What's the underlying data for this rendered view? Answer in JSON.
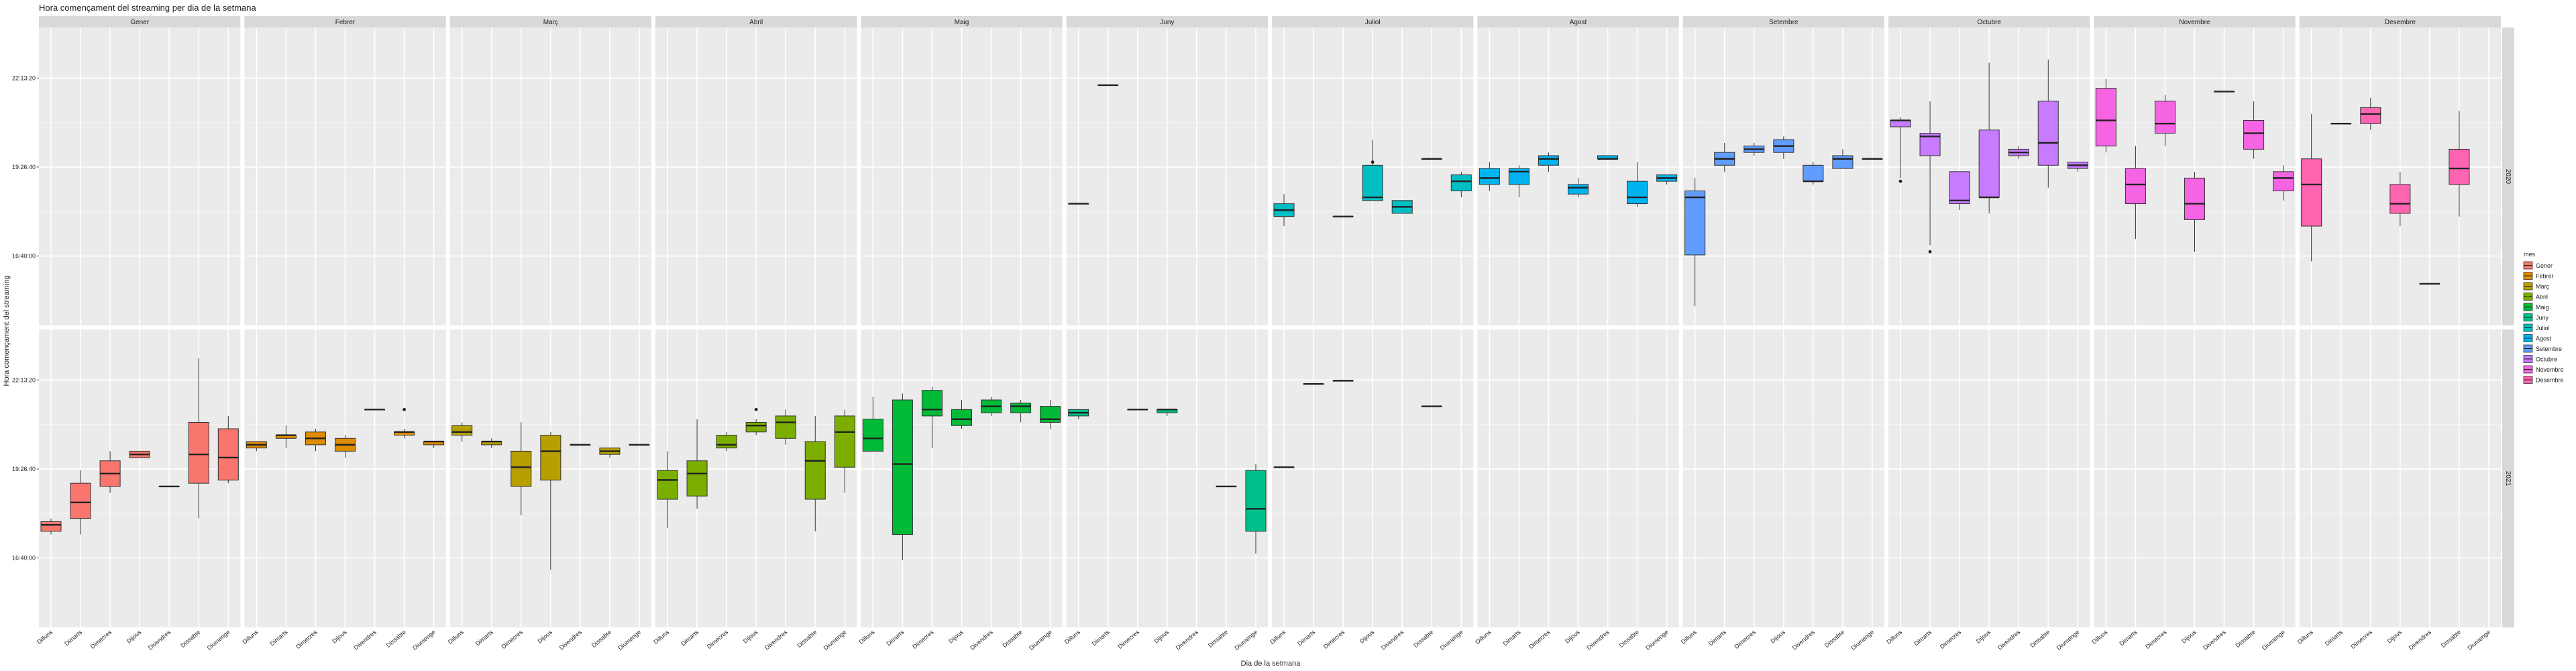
{
  "chart_data": {
    "type": "boxplot",
    "title": "Hora començament del streaming per dia de la setmana",
    "xlabel": "Dia de la setmana",
    "ylabel": "Hora començament del streaming",
    "y_ticks": [
      "22:13:20",
      "19:26:40",
      "16:40:00"
    ],
    "y_tick_values": [
      22.2222,
      19.4444,
      16.6667
    ],
    "ylim": [
      14.5,
      23.8
    ],
    "days": [
      "Dilluns",
      "Dimarts",
      "Dimecres",
      "Dijous",
      "Divendres",
      "Dissabte",
      "Diumenge"
    ],
    "months": [
      "Gener",
      "Febrer",
      "Març",
      "Abril",
      "Maig",
      "Juny",
      "Juliol",
      "Agost",
      "Setembre",
      "Octubre",
      "Novembre",
      "Desembre"
    ],
    "rows": [
      "2020",
      "2021"
    ],
    "legend": {
      "title": "mes",
      "placement": "right",
      "entries": [
        "Gener",
        "Febrer",
        "Març",
        "Abril",
        "Maig",
        "Juny",
        "Juliol",
        "Agost",
        "Setembre",
        "Octubre",
        "Novembre",
        "Desembre"
      ],
      "colors": [
        "#F8766D",
        "#DE8C00",
        "#B79F00",
        "#7CAE00",
        "#00BA38",
        "#00C08B",
        "#00BFC4",
        "#00B4F0",
        "#619CFF",
        "#C77CFF",
        "#F564E3",
        "#FF64B0"
      ]
    },
    "grid": true,
    "series": [
      {
        "row": "2020",
        "month": "Juny",
        "boxes": [
          [
            0,
            18.3,
            18.3,
            18.3,
            18.3,
            18.3
          ],
          [
            1,
            22.0,
            22.0,
            22.0,
            22.0,
            22.0
          ]
        ]
      },
      {
        "row": "2020",
        "month": "Juliol",
        "boxes": [
          [
            0,
            17.6,
            17.9,
            18.1,
            18.3,
            18.6
          ],
          [
            2,
            17.9,
            17.9,
            17.9,
            17.9,
            17.9
          ],
          [
            3,
            18.4,
            18.4,
            18.5,
            19.5,
            20.3
          ],
          [
            4,
            18.0,
            18.0,
            18.2,
            18.4,
            18.4
          ],
          [
            5,
            19.7,
            19.7,
            19.7,
            19.7,
            19.7
          ],
          [
            6,
            18.5,
            18.7,
            19.0,
            19.2,
            19.3
          ]
        ]
      },
      {
        "row": "2020",
        "month": "Agost",
        "boxes": [
          [
            0,
            18.7,
            18.9,
            19.1,
            19.4,
            19.6
          ],
          [
            1,
            18.5,
            18.9,
            19.3,
            19.4,
            19.5
          ],
          [
            2,
            19.3,
            19.5,
            19.7,
            19.8,
            19.9
          ],
          [
            3,
            18.5,
            18.6,
            18.8,
            18.9,
            19.1
          ],
          [
            4,
            19.7,
            19.7,
            19.7,
            19.8,
            19.8
          ],
          [
            5,
            18.2,
            18.3,
            18.5,
            19.0,
            19.6
          ],
          [
            6,
            18.9,
            19.0,
            19.1,
            19.2,
            19.2
          ]
        ]
      },
      {
        "row": "2020",
        "month": "Setembre",
        "boxes": [
          [
            0,
            15.1,
            16.7,
            18.5,
            18.7,
            19.1
          ],
          [
            1,
            19.3,
            19.5,
            19.7,
            19.9,
            20.2
          ],
          [
            2,
            19.8,
            19.9,
            20.0,
            20.1,
            20.2
          ],
          [
            3,
            19.7,
            19.9,
            20.1,
            20.3,
            20.4
          ],
          [
            4,
            18.9,
            19.0,
            19.0,
            19.5,
            19.6
          ],
          [
            5,
            19.4,
            19.4,
            19.7,
            19.8,
            20.0
          ],
          [
            6,
            19.7,
            19.7,
            19.7,
            19.7,
            19.7
          ]
        ]
      },
      {
        "row": "2020",
        "month": "Octubre",
        "boxes": [
          [
            0,
            19.1,
            20.7,
            20.9,
            20.9,
            21.0
          ],
          [
            1,
            17.0,
            19.8,
            20.4,
            20.5,
            21.5
          ],
          [
            2,
            18.1,
            18.3,
            18.4,
            19.3,
            19.3
          ],
          [
            3,
            18.0,
            18.5,
            18.5,
            20.6,
            22.7
          ],
          [
            4,
            19.7,
            19.8,
            19.9,
            20.0,
            20.1
          ],
          [
            5,
            18.8,
            19.5,
            20.2,
            21.5,
            22.8
          ],
          [
            6,
            19.3,
            19.4,
            19.5,
            19.6,
            19.6
          ]
        ]
      },
      {
        "row": "2020",
        "month": "Novembre",
        "boxes": [
          [
            0,
            19.9,
            20.1,
            20.9,
            21.9,
            22.2
          ],
          [
            1,
            17.2,
            18.3,
            18.9,
            19.4,
            20.1
          ],
          [
            2,
            20.1,
            20.5,
            20.8,
            21.5,
            21.7
          ],
          [
            3,
            16.8,
            17.8,
            18.3,
            19.1,
            19.3
          ],
          [
            4,
            21.8,
            21.8,
            21.8,
            21.8,
            21.8
          ],
          [
            5,
            19.7,
            20.0,
            20.5,
            20.9,
            21.5
          ],
          [
            6,
            18.4,
            18.7,
            19.1,
            19.3,
            19.5
          ]
        ]
      },
      {
        "row": "2020",
        "month": "Desembre",
        "boxes": [
          [
            0,
            16.5,
            17.6,
            18.9,
            19.7,
            21.1
          ],
          [
            1,
            20.8,
            20.8,
            20.8,
            20.8,
            20.8
          ],
          [
            2,
            20.6,
            20.8,
            21.1,
            21.3,
            21.6
          ],
          [
            3,
            17.6,
            18.0,
            18.3,
            18.9,
            19.3
          ],
          [
            4,
            15.8,
            15.8,
            15.8,
            15.8,
            15.8
          ],
          [
            5,
            17.9,
            18.9,
            19.4,
            20.0,
            21.2
          ],
          [
            6,
            null,
            null,
            null,
            null,
            null
          ]
        ]
      },
      {
        "row": "2021",
        "month": "Gener",
        "boxes": [
          [
            0,
            17.4,
            17.5,
            17.7,
            17.8,
            17.9
          ],
          [
            1,
            17.4,
            17.9,
            18.4,
            19.0,
            19.4
          ],
          [
            2,
            18.7,
            18.9,
            19.3,
            19.7,
            20.0
          ],
          [
            3,
            19.8,
            19.8,
            19.9,
            20.0,
            20.0
          ],
          [
            4,
            18.9,
            18.9,
            18.9,
            18.9,
            18.9
          ],
          [
            5,
            17.9,
            19.0,
            19.9,
            20.9,
            22.9
          ],
          [
            6,
            19.0,
            19.1,
            19.8,
            20.7,
            21.1
          ]
        ]
      },
      {
        "row": "2021",
        "month": "Febrer",
        "boxes": [
          [
            0,
            20.0,
            20.1,
            20.2,
            20.3,
            20.3
          ],
          [
            1,
            20.1,
            20.4,
            20.5,
            20.5,
            20.8
          ],
          [
            2,
            20.0,
            20.2,
            20.4,
            20.6,
            20.7
          ],
          [
            3,
            19.8,
            20.0,
            20.2,
            20.4,
            20.5
          ],
          [
            4,
            21.3,
            21.3,
            21.3,
            21.3,
            21.3
          ],
          [
            5,
            20.4,
            20.5,
            20.6,
            20.6,
            20.7
          ],
          [
            6,
            20.1,
            20.2,
            20.3,
            20.3,
            20.3
          ]
        ]
      },
      {
        "row": "2021",
        "month": "Març",
        "boxes": [
          [
            0,
            20.3,
            20.5,
            20.6,
            20.8,
            20.9
          ],
          [
            1,
            20.1,
            20.2,
            20.3,
            20.3,
            20.4
          ],
          [
            2,
            18.0,
            18.9,
            19.5,
            20.0,
            20.9
          ],
          [
            3,
            16.3,
            19.1,
            20.0,
            20.5,
            20.6
          ],
          [
            4,
            20.2,
            20.2,
            20.2,
            20.2,
            20.2
          ],
          [
            5,
            19.8,
            19.9,
            20.0,
            20.1,
            20.1
          ],
          [
            6,
            20.2,
            20.2,
            20.2,
            20.2,
            20.2
          ]
        ]
      },
      {
        "row": "2021",
        "month": "Abril",
        "boxes": [
          [
            0,
            17.6,
            18.5,
            19.1,
            19.4,
            20.0
          ],
          [
            1,
            18.2,
            18.6,
            19.3,
            19.7,
            21.0
          ],
          [
            2,
            20.0,
            20.1,
            20.2,
            20.5,
            20.6
          ],
          [
            3,
            20.5,
            20.6,
            20.8,
            20.9,
            21.0
          ],
          [
            4,
            20.2,
            20.4,
            20.9,
            21.1,
            21.3
          ],
          [
            5,
            17.5,
            18.5,
            19.7,
            20.3,
            21.1
          ],
          [
            6,
            18.7,
            19.5,
            20.6,
            21.1,
            21.3
          ]
        ]
      },
      {
        "row": "2021",
        "month": "Maig",
        "boxes": [
          [
            0,
            20.0,
            20.0,
            20.4,
            21.0,
            21.7
          ],
          [
            1,
            16.6,
            17.4,
            19.6,
            21.6,
            21.8
          ],
          [
            2,
            20.1,
            21.1,
            21.3,
            21.9,
            22.0
          ],
          [
            3,
            20.7,
            20.8,
            21.0,
            21.3,
            21.6
          ],
          [
            4,
            21.1,
            21.2,
            21.4,
            21.6,
            21.7
          ],
          [
            5,
            20.9,
            21.2,
            21.4,
            21.5,
            21.6
          ],
          [
            6,
            20.7,
            20.9,
            21.0,
            21.4,
            21.6
          ]
        ]
      },
      {
        "row": "2021",
        "month": "Juny",
        "boxes": [
          [
            0,
            21.0,
            21.1,
            21.2,
            21.3,
            21.3
          ],
          [
            2,
            21.3,
            21.3,
            21.3,
            21.3,
            21.3
          ],
          [
            3,
            21.1,
            21.2,
            21.3,
            21.3,
            21.3
          ],
          [
            5,
            18.9,
            18.9,
            18.9,
            18.9,
            18.9
          ],
          [
            6,
            16.8,
            17.5,
            18.2,
            19.4,
            19.6
          ]
        ]
      },
      {
        "row": "2021",
        "month": "Juliol",
        "boxes": [
          [
            0,
            19.5,
            19.5,
            19.5,
            19.5,
            19.5
          ],
          [
            1,
            22.1,
            22.1,
            22.1,
            22.1,
            22.1
          ],
          [
            2,
            22.2,
            22.2,
            22.2,
            22.2,
            22.2
          ],
          [
            5,
            21.4,
            21.4,
            21.4,
            21.4,
            21.4
          ]
        ]
      }
    ],
    "outliers": [
      {
        "row": "2020",
        "month": "Juliol",
        "day": 3,
        "value": 19.6
      },
      {
        "row": "2020",
        "month": "Octubre",
        "day": 0,
        "value": 19.0
      },
      {
        "row": "2020",
        "month": "Octubre",
        "day": 1,
        "value": 16.8
      },
      {
        "row": "2021",
        "month": "Febrer",
        "day": 5,
        "value": 21.3
      },
      {
        "row": "2021",
        "month": "Abril",
        "day": 3,
        "value": 21.3
      }
    ]
  }
}
